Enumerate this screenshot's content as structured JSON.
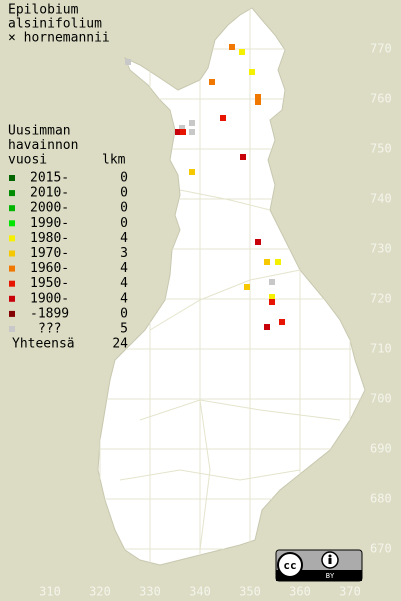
{
  "title": [
    "Epilobium",
    "alsinifolium",
    "× hornemannii"
  ],
  "legend_heading": [
    "Uusimman",
    "havainnon",
    "vuosi"
  ],
  "count_heading": "lkm",
  "legend": [
    {
      "label": "2015-",
      "color": "#006400",
      "count": 0
    },
    {
      "label": "2010-",
      "color": "#008c00",
      "count": 0
    },
    {
      "label": "2000-",
      "color": "#00b400",
      "count": 0
    },
    {
      "label": "1990-",
      "color": "#00e600",
      "count": 0
    },
    {
      "label": "1980-",
      "color": "#f5f000",
      "count": 4
    },
    {
      "label": "1970-",
      "color": "#f5c800",
      "count": 3
    },
    {
      "label": "1960-",
      "color": "#f07800",
      "count": 4
    },
    {
      "label": "1950-",
      "color": "#e61400",
      "count": 4
    },
    {
      "label": "1900-",
      "color": "#c8000a",
      "count": 4
    },
    {
      "label": "-1899",
      "color": "#820000",
      "count": 0
    },
    {
      "label": "???",
      "color": "#c8c8c8",
      "count": 5
    }
  ],
  "total_label": "Yhteensä",
  "total": 24,
  "x_labels": [
    310,
    320,
    330,
    340,
    350,
    360,
    370
  ],
  "y_labels": [
    670,
    680,
    690,
    700,
    710,
    720,
    730,
    740,
    750,
    760,
    770
  ],
  "points": [
    {
      "x": 346.4,
      "y": 770.4,
      "period": "1960-"
    },
    {
      "x": 348.4,
      "y": 769.4,
      "period": "1980-"
    },
    {
      "x": 350.4,
      "y": 765.4,
      "period": "1980-"
    },
    {
      "x": 342.4,
      "y": 763.4,
      "period": "1960-"
    },
    {
      "x": 351.6,
      "y": 760.4,
      "period": "1960-"
    },
    {
      "x": 351.6,
      "y": 759.4,
      "period": "1960-"
    },
    {
      "x": 344.6,
      "y": 756.2,
      "period": "1950-"
    },
    {
      "x": 338.4,
      "y": 755.2,
      "period": "???"
    },
    {
      "x": 338.4,
      "y": 753.4,
      "period": "???"
    },
    {
      "x": 336.4,
      "y": 754.2,
      "period": "???"
    },
    {
      "x": 335.6,
      "y": 753.4,
      "period": "1900-"
    },
    {
      "x": 336.6,
      "y": 753.4,
      "period": "1950-"
    },
    {
      "x": 348.6,
      "y": 748.4,
      "period": "1900-"
    },
    {
      "x": 338.4,
      "y": 745.4,
      "period": "1970-"
    },
    {
      "x": 351.6,
      "y": 731.4,
      "period": "1900-"
    },
    {
      "x": 353.4,
      "y": 727.4,
      "period": "1970-"
    },
    {
      "x": 355.6,
      "y": 727.4,
      "period": "1980-"
    },
    {
      "x": 349.4,
      "y": 722.4,
      "period": "1970-"
    },
    {
      "x": 354.4,
      "y": 723.4,
      "period": "???"
    },
    {
      "x": 354.4,
      "y": 720.4,
      "period": "1980-"
    },
    {
      "x": 354.4,
      "y": 719.4,
      "period": "1950-"
    },
    {
      "x": 356.4,
      "y": 715.4,
      "period": "1950-"
    },
    {
      "x": 353.4,
      "y": 714.4,
      "period": "1900-"
    },
    {
      "x": 325.6,
      "y": 767.4,
      "period": "???"
    }
  ],
  "badge": "BY"
}
